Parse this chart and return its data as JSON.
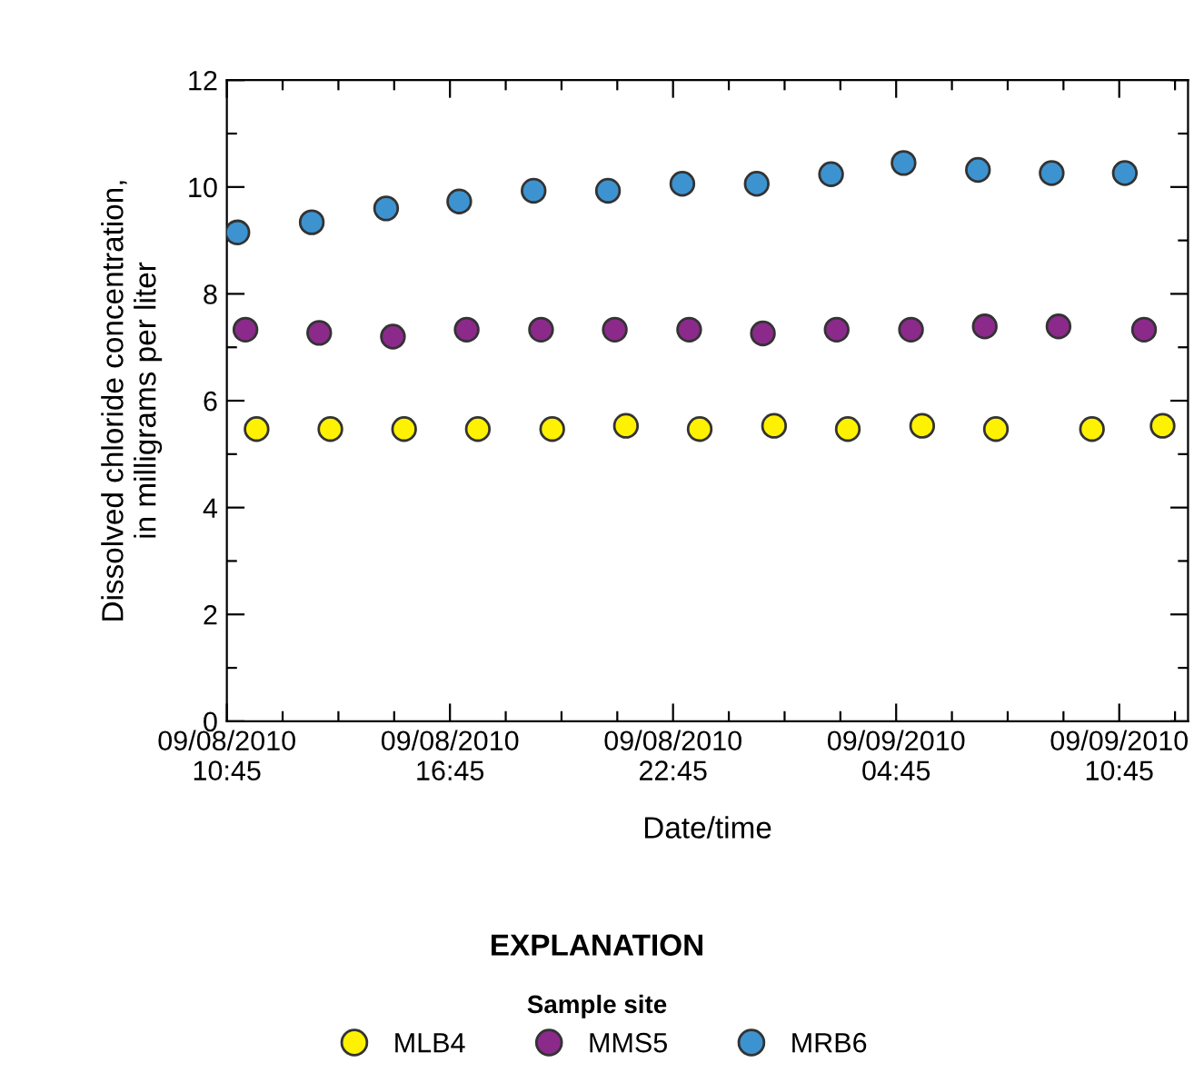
{
  "chart_data": {
    "type": "scatter",
    "xlabel": "Date/time",
    "ylabel": "Dissolved chloride concentration,\nin milligrams per liter",
    "legend_title": "Sample site",
    "annotations": [
      "EXPLANATION"
    ],
    "series": [
      {
        "name": "MLB4",
        "color": "#fff200",
        "x": [
          "2010-09-08T11:33",
          "2010-09-08T13:32",
          "2010-09-08T15:31",
          "2010-09-08T17:30",
          "2010-09-08T19:30",
          "2010-09-08T21:29",
          "2010-09-08T23:28",
          "2010-09-09T01:28",
          "2010-09-09T03:27",
          "2010-09-09T05:27",
          "2010-09-09T07:26",
          "2010-09-09T10:01",
          "2010-09-09T11:55"
        ],
        "values": [
          5.47,
          5.47,
          5.47,
          5.47,
          5.47,
          5.53,
          5.47,
          5.53,
          5.47,
          5.53,
          5.47,
          5.47,
          5.53
        ]
      },
      {
        "name": "MMS5",
        "color": "#8b2a8b",
        "x": [
          "2010-09-08T11:15",
          "2010-09-08T13:14",
          "2010-09-08T15:13",
          "2010-09-08T17:12",
          "2010-09-08T19:12",
          "2010-09-08T21:11",
          "2010-09-08T23:11",
          "2010-09-09T01:10",
          "2010-09-09T03:09",
          "2010-09-09T05:09",
          "2010-09-09T07:08",
          "2010-09-09T09:07",
          "2010-09-09T11:25"
        ],
        "values": [
          7.33,
          7.27,
          7.2,
          7.33,
          7.33,
          7.33,
          7.33,
          7.26,
          7.33,
          7.33,
          7.39,
          7.39,
          7.33
        ]
      },
      {
        "name": "MRB6",
        "color": "#3d93d0",
        "x": [
          "2010-09-08T11:02",
          "2010-09-08T13:02",
          "2010-09-08T15:02",
          "2010-09-08T17:00",
          "2010-09-08T19:00",
          "2010-09-08T21:00",
          "2010-09-08T23:00",
          "2010-09-09T01:00",
          "2010-09-09T03:00",
          "2010-09-09T04:57",
          "2010-09-09T06:57",
          "2010-09-09T08:56",
          "2010-09-09T10:54"
        ],
        "values": [
          9.15,
          9.34,
          9.6,
          9.73,
          9.93,
          9.93,
          10.06,
          10.06,
          10.24,
          10.45,
          10.32,
          10.26,
          10.26
        ]
      }
    ],
    "xlim": [
      "2010-09-08T10:45",
      "2010-09-09T12:36"
    ],
    "xticks": [
      {
        "value": "2010-09-08T10:45",
        "label": "09/08/2010\n10:45"
      },
      {
        "value": "2010-09-08T12:15",
        "label": null
      },
      {
        "value": "2010-09-08T13:45",
        "label": null
      },
      {
        "value": "2010-09-08T15:15",
        "label": null
      },
      {
        "value": "2010-09-08T16:45",
        "label": "09/08/2010\n16:45"
      },
      {
        "value": "2010-09-08T18:15",
        "label": null
      },
      {
        "value": "2010-09-08T19:45",
        "label": null
      },
      {
        "value": "2010-09-08T21:15",
        "label": null
      },
      {
        "value": "2010-09-08T22:45",
        "label": "09/08/2010\n22:45"
      },
      {
        "value": "2010-09-09T00:15",
        "label": null
      },
      {
        "value": "2010-09-09T01:45",
        "label": null
      },
      {
        "value": "2010-09-09T03:15",
        "label": null
      },
      {
        "value": "2010-09-09T04:45",
        "label": "09/09/2010\n04:45"
      },
      {
        "value": "2010-09-09T06:15",
        "label": null
      },
      {
        "value": "2010-09-09T07:45",
        "label": null
      },
      {
        "value": "2010-09-09T09:15",
        "label": null
      },
      {
        "value": "2010-09-09T10:45",
        "label": "09/09/2010\n10:45"
      },
      {
        "value": "2010-09-09T12:15",
        "label": null
      }
    ],
    "ylim": [
      0,
      12
    ],
    "yticks": [
      0,
      {
        "value": 1,
        "label": null
      },
      2,
      {
        "value": 3,
        "label": null
      },
      4,
      {
        "value": 5,
        "label": null
      },
      6,
      {
        "value": 7,
        "label": null
      },
      8,
      {
        "value": 9,
        "label": null
      },
      10,
      {
        "value": 11,
        "label": null
      },
      12
    ],
    "marker": "circle",
    "legend": "bottom"
  }
}
